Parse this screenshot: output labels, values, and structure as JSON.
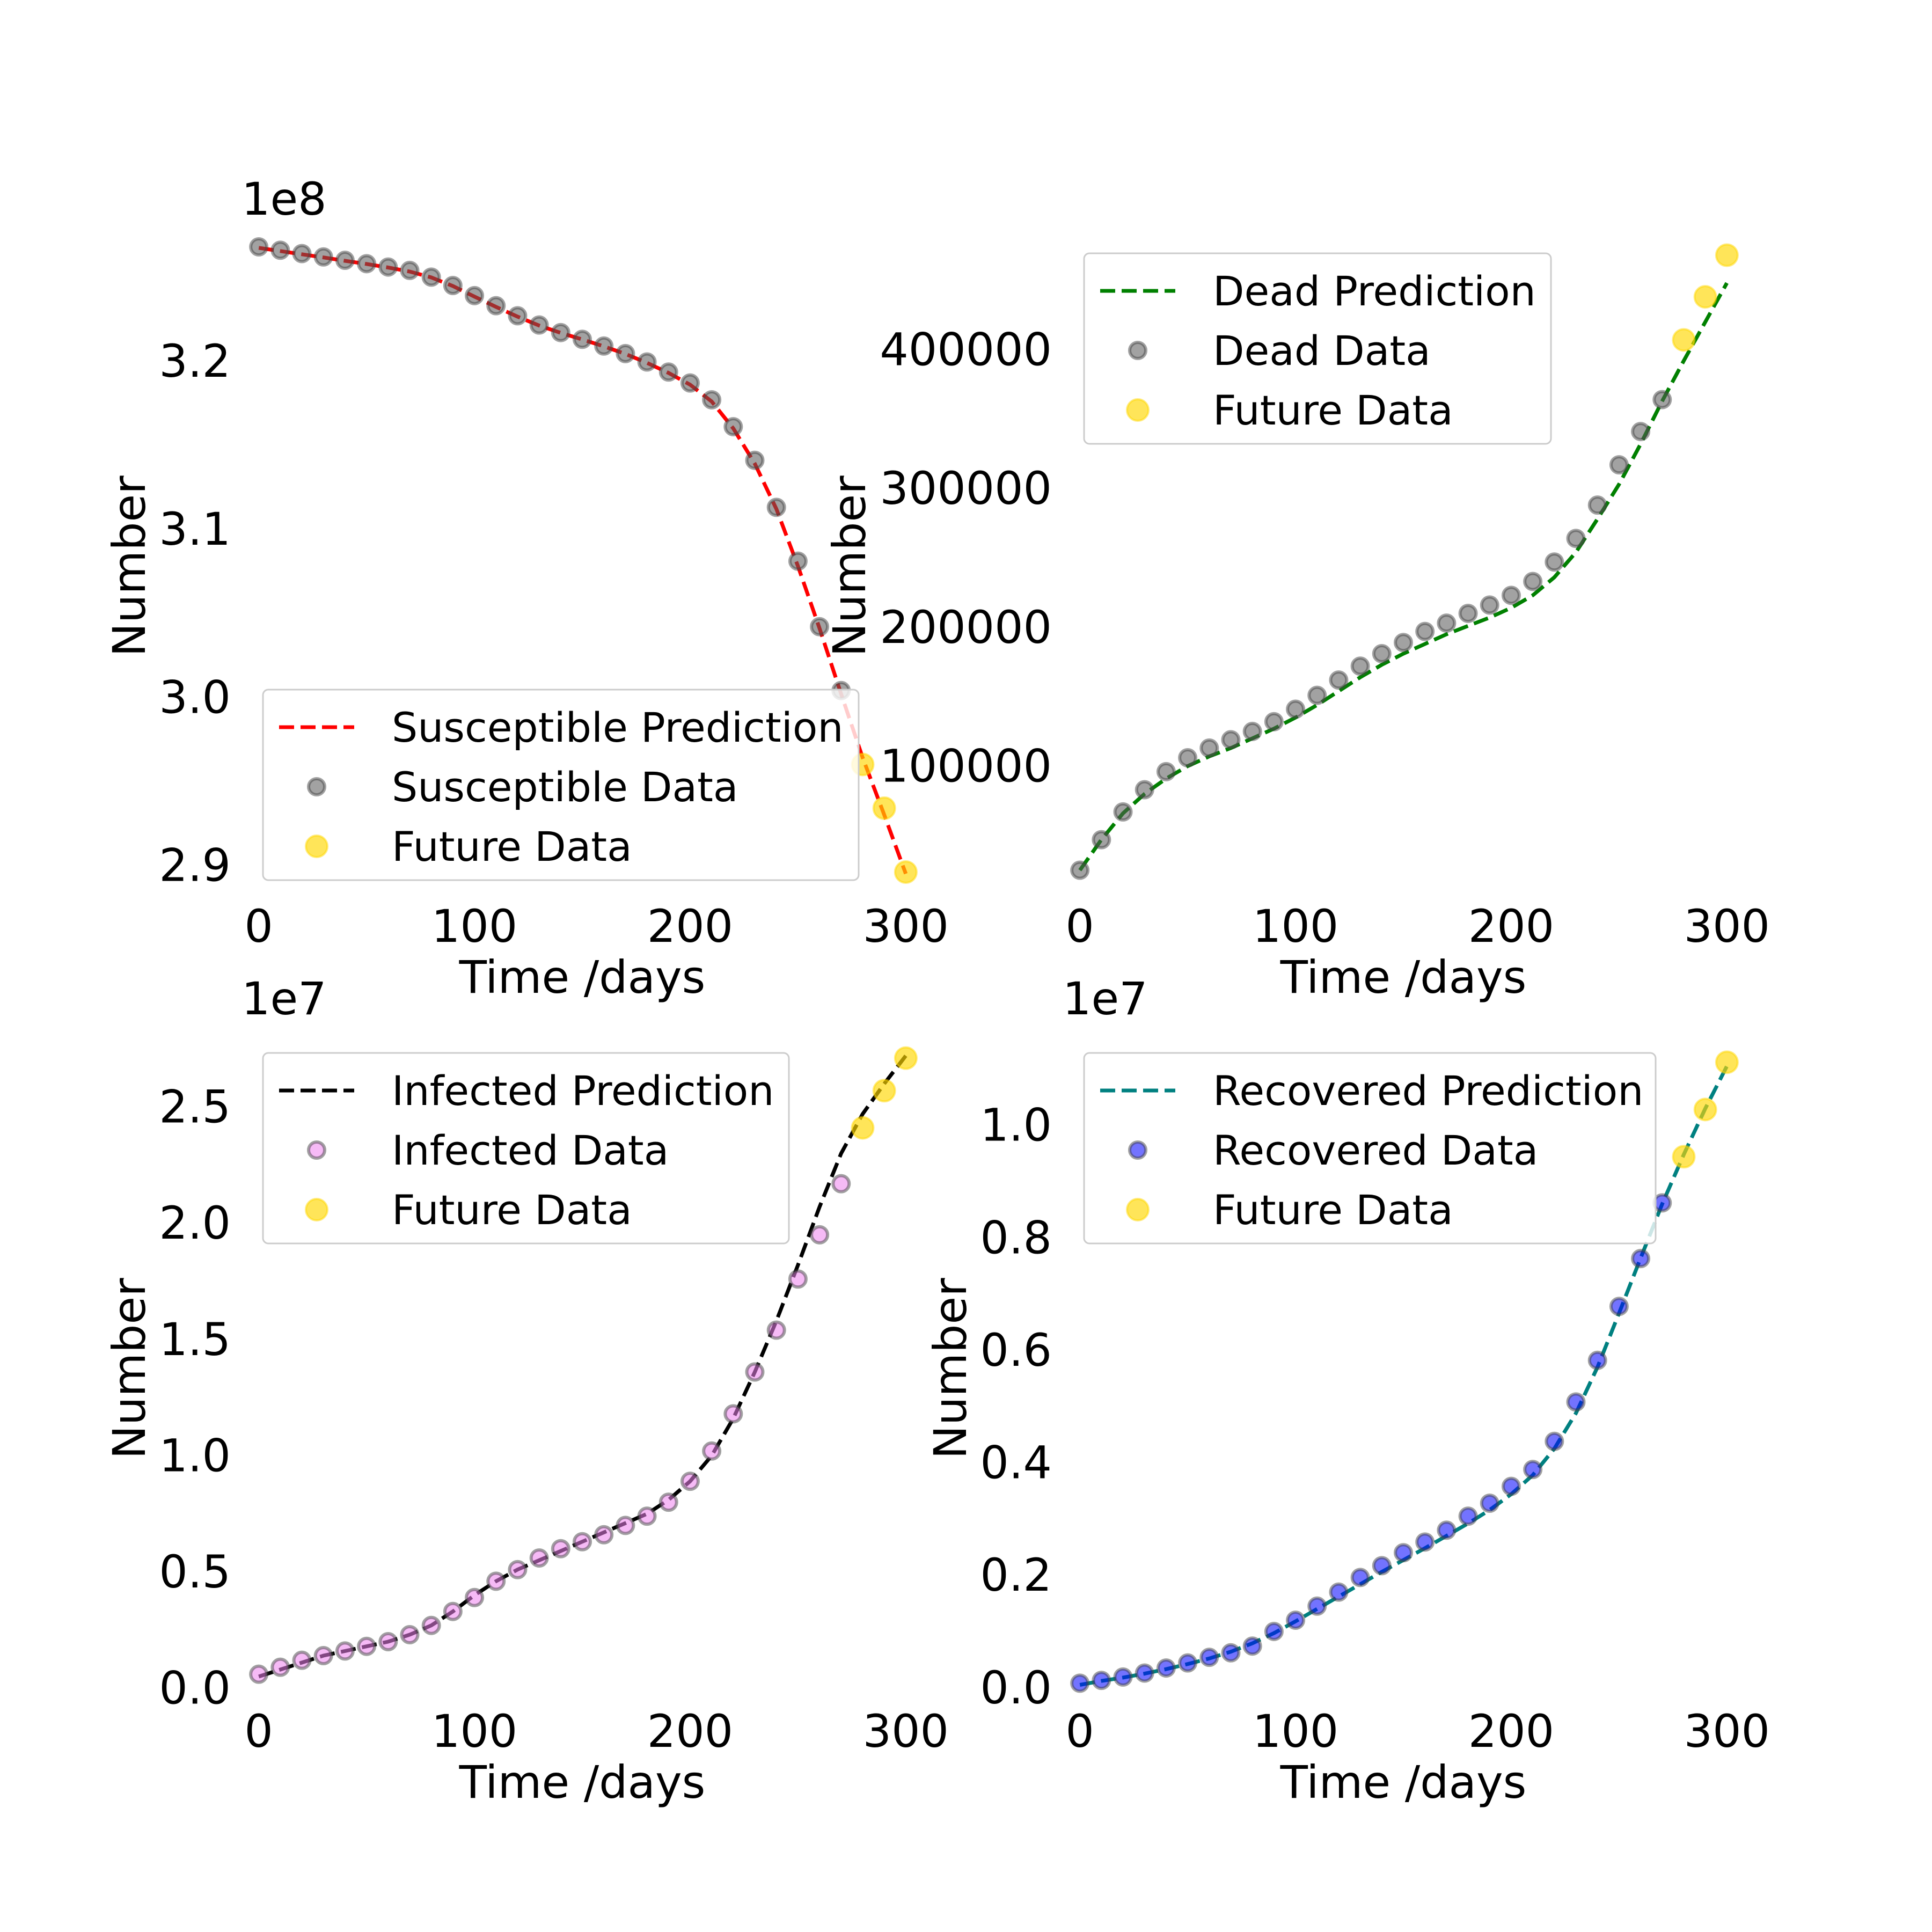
{
  "colors": {
    "future": "#ffd700",
    "data_edge": "#444444"
  },
  "chart_data": [
    {
      "type": "line",
      "xlabel": "Time /days",
      "ylabel": "Number",
      "offset_label": "1e8",
      "scale": 100000000,
      "xlim": [
        -8,
        308
      ],
      "ylim": [
        2.888,
        3.268
      ],
      "xticks": [
        0,
        100,
        200,
        300
      ],
      "yticks": [
        2.9,
        3.0,
        3.1,
        3.2
      ],
      "ytick_labels": [
        "2.9",
        "3.0",
        "3.1",
        "3.2"
      ],
      "legend_position": "lower left",
      "legend": [
        "Susceptible Prediction",
        "Susceptible Data",
        "Future Data"
      ],
      "series": [
        {
          "name": "Susceptible Prediction",
          "kind": "dashed-line",
          "color": "#ff0000",
          "x": [
            0,
            10,
            20,
            30,
            40,
            50,
            60,
            70,
            80,
            90,
            100,
            110,
            120,
            130,
            140,
            150,
            160,
            170,
            180,
            190,
            200,
            210,
            220,
            230,
            240,
            250,
            260,
            270,
            280,
            290,
            300
          ],
          "y": [
            3.2674,
            3.2655,
            3.2636,
            3.2617,
            3.2597,
            3.2578,
            3.2557,
            3.2533,
            3.2498,
            3.2447,
            3.2384,
            3.2323,
            3.2265,
            3.2212,
            3.2168,
            3.2129,
            3.2088,
            3.2043,
            3.199,
            3.193,
            3.186,
            3.176,
            3.16,
            3.139,
            3.112,
            3.078,
            3.041,
            3.002,
            2.964,
            2.93,
            2.895
          ]
        },
        {
          "name": "Susceptible Data",
          "kind": "points",
          "color": "#555555",
          "x": [
            0,
            10,
            20,
            30,
            40,
            50,
            60,
            70,
            80,
            90,
            100,
            110,
            120,
            130,
            140,
            150,
            160,
            170,
            180,
            190,
            200,
            210,
            220,
            230,
            240,
            250,
            260,
            270
          ],
          "y": [
            3.268,
            3.266,
            3.264,
            3.262,
            3.26,
            3.258,
            3.256,
            3.254,
            3.25,
            3.245,
            3.239,
            3.233,
            3.227,
            3.2215,
            3.217,
            3.213,
            3.209,
            3.2045,
            3.1995,
            3.1935,
            3.187,
            3.177,
            3.161,
            3.141,
            3.113,
            3.081,
            3.042,
            3.004
          ]
        },
        {
          "name": "Future Data",
          "kind": "points",
          "color": "#ffd700",
          "x": [
            280,
            290,
            300
          ],
          "y": [
            2.96,
            2.934,
            2.896
          ]
        }
      ]
    },
    {
      "type": "line",
      "xlabel": "Time /days",
      "ylabel": "Number",
      "offset_label": "",
      "scale": 1,
      "xlim": [
        -8,
        308
      ],
      "ylim": [
        14000,
        474000
      ],
      "xticks": [
        0,
        100,
        200,
        300
      ],
      "yticks": [
        100000,
        200000,
        300000,
        400000
      ],
      "ytick_labels": [
        "100000",
        "200000",
        "300000",
        "400000"
      ],
      "legend_position": "upper left",
      "legend": [
        "Dead Prediction",
        "Dead Data",
        "Future Data"
      ],
      "series": [
        {
          "name": "Dead Prediction",
          "kind": "dashed-line",
          "color": "#008000",
          "x": [
            0,
            10,
            20,
            30,
            40,
            50,
            60,
            70,
            80,
            90,
            100,
            110,
            120,
            130,
            140,
            150,
            160,
            170,
            180,
            190,
            200,
            210,
            220,
            230,
            240,
            250,
            260,
            270,
            280,
            290,
            300
          ],
          "y": [
            25000,
            47000,
            66000,
            80000,
            91000,
            100000,
            107000,
            113000,
            120000,
            127000,
            135000,
            144000,
            154000,
            164000,
            173000,
            181000,
            188000,
            195000,
            201000,
            207000,
            214000,
            223000,
            236000,
            254000,
            278000,
            303000,
            332000,
            363000,
            392000,
            420000,
            448000
          ]
        },
        {
          "name": "Dead Data",
          "kind": "points",
          "color": "#555555",
          "x": [
            0,
            10,
            20,
            30,
            40,
            50,
            60,
            70,
            80,
            90,
            100,
            110,
            120,
            130,
            140,
            150,
            160,
            170,
            180,
            190,
            200,
            210,
            220,
            230,
            240,
            250,
            260,
            270
          ],
          "y": [
            25000,
            47000,
            67000,
            83000,
            96000,
            106000,
            113000,
            119000,
            125000,
            132000,
            141000,
            151000,
            162000,
            172000,
            181000,
            189000,
            197000,
            203000,
            210000,
            216000,
            223000,
            233000,
            247000,
            264000,
            288000,
            317000,
            341000,
            364000
          ]
        },
        {
          "name": "Future Data",
          "kind": "points",
          "color": "#ffd700",
          "x": [
            280,
            290,
            300
          ],
          "y": [
            407000,
            438000,
            468000
          ]
        }
      ]
    },
    {
      "type": "line",
      "xlabel": "Time /days",
      "ylabel": "Number",
      "offset_label": "1e7",
      "scale": 10000000,
      "xlim": [
        -8,
        308
      ],
      "ylim": [
        -0.01,
        2.76
      ],
      "xticks": [
        0,
        100,
        200,
        300
      ],
      "yticks": [
        0.0,
        0.5,
        1.0,
        1.5,
        2.0,
        2.5
      ],
      "ytick_labels": [
        "0.0",
        "0.5",
        "1.0",
        "1.5",
        "2.0",
        "2.5"
      ],
      "legend_position": "upper left",
      "legend": [
        "Infected Prediction",
        "Infected Data",
        "Future Data"
      ],
      "series": [
        {
          "name": "Infected Prediction",
          "kind": "dashed-line",
          "color": "#000000",
          "x": [
            0,
            10,
            20,
            30,
            40,
            50,
            60,
            70,
            80,
            90,
            100,
            110,
            120,
            130,
            140,
            150,
            160,
            170,
            180,
            190,
            200,
            210,
            220,
            230,
            240,
            250,
            260,
            270,
            280,
            290,
            300
          ],
          "y": [
            0.05,
            0.08,
            0.11,
            0.14,
            0.16,
            0.18,
            0.2,
            0.23,
            0.27,
            0.33,
            0.4,
            0.46,
            0.51,
            0.55,
            0.59,
            0.63,
            0.67,
            0.71,
            0.75,
            0.81,
            0.89,
            1.0,
            1.16,
            1.36,
            1.58,
            1.82,
            2.07,
            2.3,
            2.47,
            2.6,
            2.72
          ]
        },
        {
          "name": "Infected Data",
          "kind": "points",
          "color": "#ee82ee",
          "x": [
            0,
            10,
            20,
            30,
            40,
            50,
            60,
            70,
            80,
            90,
            100,
            110,
            120,
            130,
            140,
            150,
            160,
            170,
            180,
            190,
            200,
            210,
            220,
            230,
            240,
            250,
            260,
            270
          ],
          "y": [
            0.06,
            0.09,
            0.12,
            0.14,
            0.16,
            0.18,
            0.2,
            0.23,
            0.27,
            0.33,
            0.39,
            0.46,
            0.51,
            0.56,
            0.6,
            0.63,
            0.66,
            0.7,
            0.74,
            0.8,
            0.89,
            1.02,
            1.18,
            1.36,
            1.54,
            1.76,
            1.95,
            2.17
          ]
        },
        {
          "name": "Future Data",
          "kind": "points",
          "color": "#ffd700",
          "x": [
            280,
            290,
            300
          ],
          "y": [
            2.41,
            2.57,
            2.71
          ]
        }
      ]
    },
    {
      "type": "line",
      "xlabel": "Time /days",
      "ylabel": "Number",
      "offset_label": "1e7",
      "scale": 10000000,
      "xlim": [
        -8,
        308
      ],
      "ylim": [
        -0.005,
        1.14
      ],
      "xticks": [
        0,
        100,
        200,
        300
      ],
      "yticks": [
        0.0,
        0.2,
        0.4,
        0.6,
        0.8,
        1.0
      ],
      "ytick_labels": [
        "0.0",
        "0.2",
        "0.4",
        "0.6",
        "0.8",
        "1.0"
      ],
      "legend_position": "upper left",
      "legend": [
        "Recovered Prediction",
        "Recovered Data",
        "Future Data"
      ],
      "series": [
        {
          "name": "Recovered Prediction",
          "kind": "dashed-line",
          "color": "#008080",
          "x": [
            0,
            10,
            20,
            30,
            40,
            50,
            60,
            70,
            80,
            90,
            100,
            110,
            120,
            130,
            140,
            150,
            160,
            170,
            180,
            190,
            200,
            210,
            220,
            230,
            240,
            250,
            260,
            270,
            280,
            290,
            300
          ],
          "y": [
            0.005,
            0.012,
            0.018,
            0.025,
            0.033,
            0.042,
            0.052,
            0.064,
            0.079,
            0.097,
            0.118,
            0.14,
            0.162,
            0.184,
            0.206,
            0.227,
            0.248,
            0.27,
            0.292,
            0.316,
            0.344,
            0.378,
            0.425,
            0.488,
            0.57,
            0.666,
            0.764,
            0.86,
            0.948,
            1.03,
            1.105
          ]
        },
        {
          "name": "Recovered Data",
          "kind": "points",
          "color": "#0000ff",
          "x": [
            0,
            10,
            20,
            30,
            40,
            50,
            60,
            70,
            80,
            90,
            100,
            110,
            120,
            130,
            140,
            150,
            160,
            170,
            180,
            190,
            200,
            210,
            220,
            230,
            240,
            250,
            260,
            270
          ],
          "y": [
            0.008,
            0.013,
            0.019,
            0.026,
            0.035,
            0.044,
            0.054,
            0.062,
            0.074,
            0.1,
            0.12,
            0.145,
            0.17,
            0.196,
            0.217,
            0.24,
            0.259,
            0.28,
            0.305,
            0.328,
            0.358,
            0.388,
            0.438,
            0.508,
            0.582,
            0.678,
            0.763,
            0.862
          ]
        },
        {
          "name": "Future Data",
          "kind": "points",
          "color": "#ffd700",
          "x": [
            280,
            290,
            300
          ],
          "y": [
            0.944,
            1.028,
            1.112
          ]
        }
      ]
    }
  ]
}
